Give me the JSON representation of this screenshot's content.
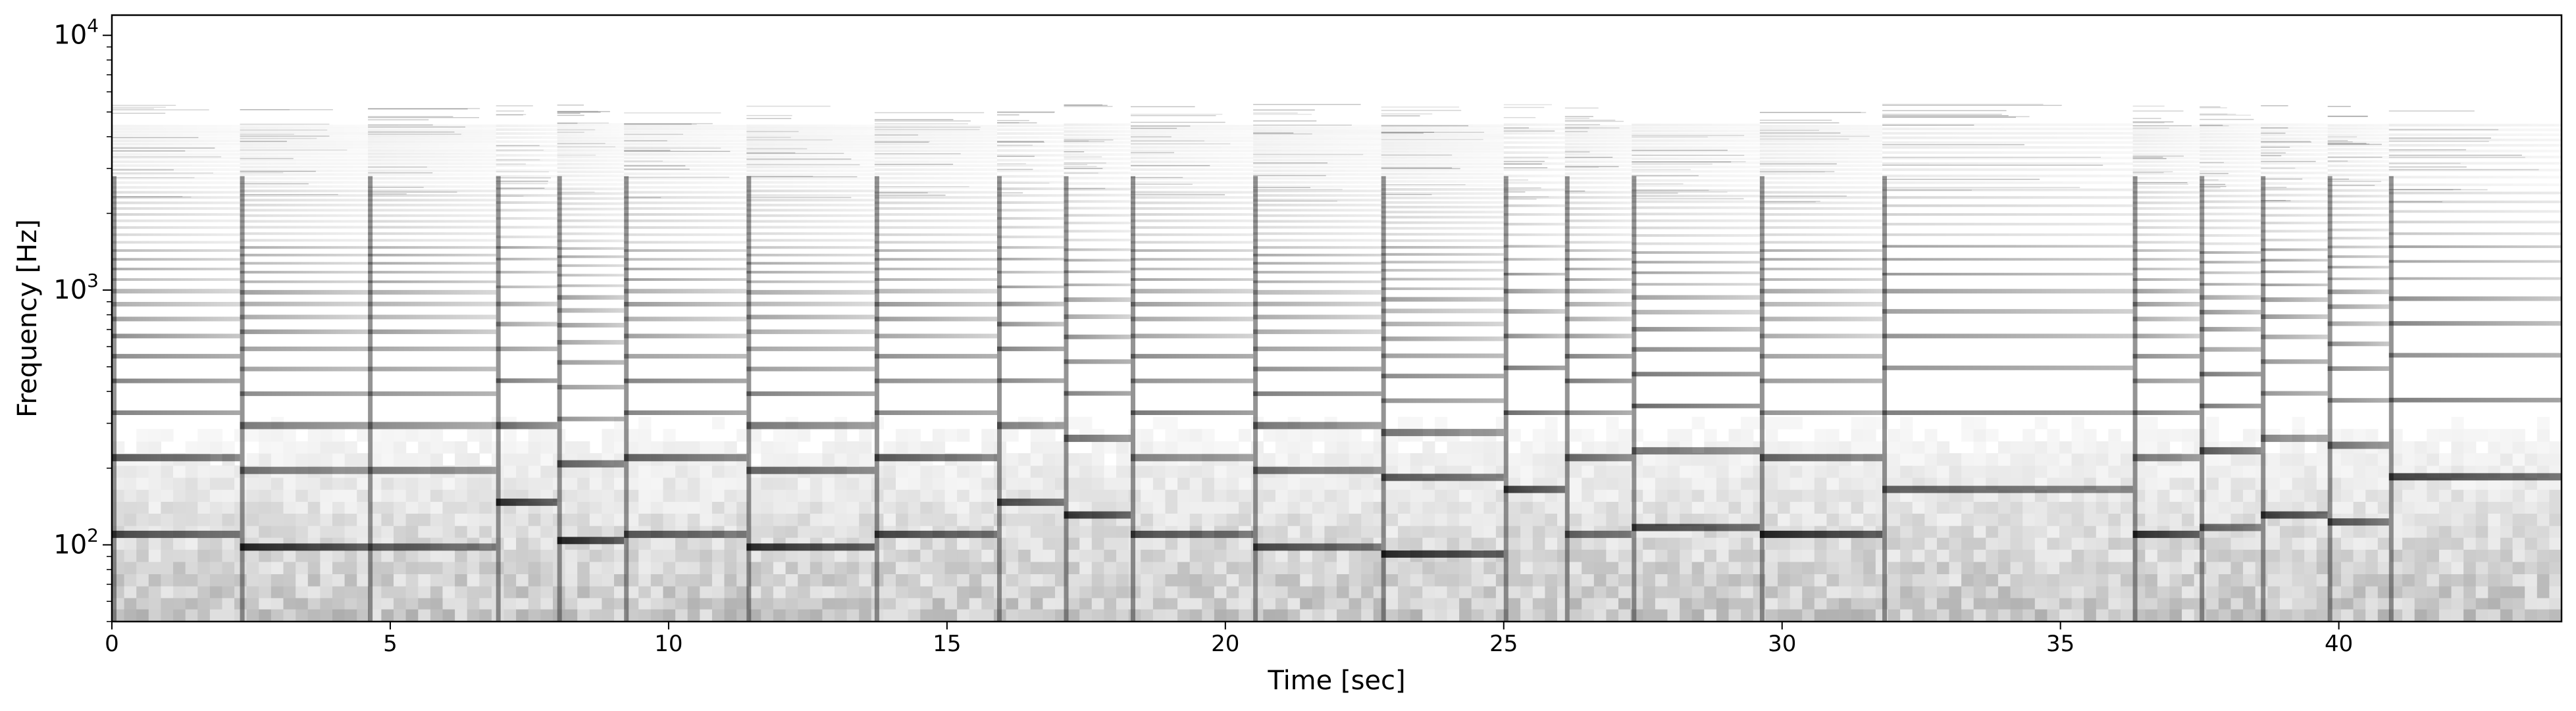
{
  "chart_data": {
    "type": "heatmap",
    "subtype": "spectrogram",
    "colormap": "gray_r",
    "xlabel": "Time [sec]",
    "ylabel": "Frequency [Hz]",
    "xlim": [
      0,
      44
    ],
    "ylim": [
      50,
      12000
    ],
    "yscale": "log",
    "grid": false,
    "x_ticks": [
      {
        "value": 0,
        "label": "0"
      },
      {
        "value": 5,
        "label": "5"
      },
      {
        "value": 10,
        "label": "10"
      },
      {
        "value": 15,
        "label": "15"
      },
      {
        "value": 20,
        "label": "20"
      },
      {
        "value": 25,
        "label": "25"
      },
      {
        "value": 30,
        "label": "30"
      },
      {
        "value": 35,
        "label": "35"
      },
      {
        "value": 40,
        "label": "40"
      }
    ],
    "y_ticks": [
      {
        "value": 100,
        "base": "10",
        "exp": "2"
      },
      {
        "value": 1000,
        "base": "10",
        "exp": "3"
      },
      {
        "value": 10000,
        "base": "10",
        "exp": "4"
      }
    ],
    "notes": [
      {
        "onset": 0.0,
        "end": 2.3,
        "f0": 110
      },
      {
        "onset": 2.3,
        "end": 4.6,
        "f0": 98
      },
      {
        "onset": 4.6,
        "end": 6.9,
        "f0": 98
      },
      {
        "onset": 6.9,
        "end": 8.0,
        "f0": 147
      },
      {
        "onset": 8.0,
        "end": 9.2,
        "f0": 104
      },
      {
        "onset": 9.2,
        "end": 11.4,
        "f0": 110
      },
      {
        "onset": 11.4,
        "end": 13.7,
        "f0": 98
      },
      {
        "onset": 13.7,
        "end": 15.9,
        "f0": 110
      },
      {
        "onset": 15.9,
        "end": 17.1,
        "f0": 147
      },
      {
        "onset": 17.1,
        "end": 18.3,
        "f0": 131
      },
      {
        "onset": 18.3,
        "end": 20.5,
        "f0": 110
      },
      {
        "onset": 20.5,
        "end": 22.8,
        "f0": 98
      },
      {
        "onset": 22.8,
        "end": 25.0,
        "f0": 92
      },
      {
        "onset": 25.0,
        "end": 26.1,
        "f0": 165
      },
      {
        "onset": 26.1,
        "end": 27.3,
        "f0": 110
      },
      {
        "onset": 27.3,
        "end": 29.6,
        "f0": 117
      },
      {
        "onset": 29.6,
        "end": 31.8,
        "f0": 110
      },
      {
        "onset": 31.8,
        "end": 36.3,
        "f0": 165
      },
      {
        "onset": 36.3,
        "end": 37.5,
        "f0": 110
      },
      {
        "onset": 37.5,
        "end": 38.6,
        "f0": 117
      },
      {
        "onset": 38.6,
        "end": 39.8,
        "f0": 131
      },
      {
        "onset": 39.8,
        "end": 40.9,
        "f0": 123
      },
      {
        "onset": 40.9,
        "end": 44.0,
        "f0": 185
      }
    ]
  }
}
